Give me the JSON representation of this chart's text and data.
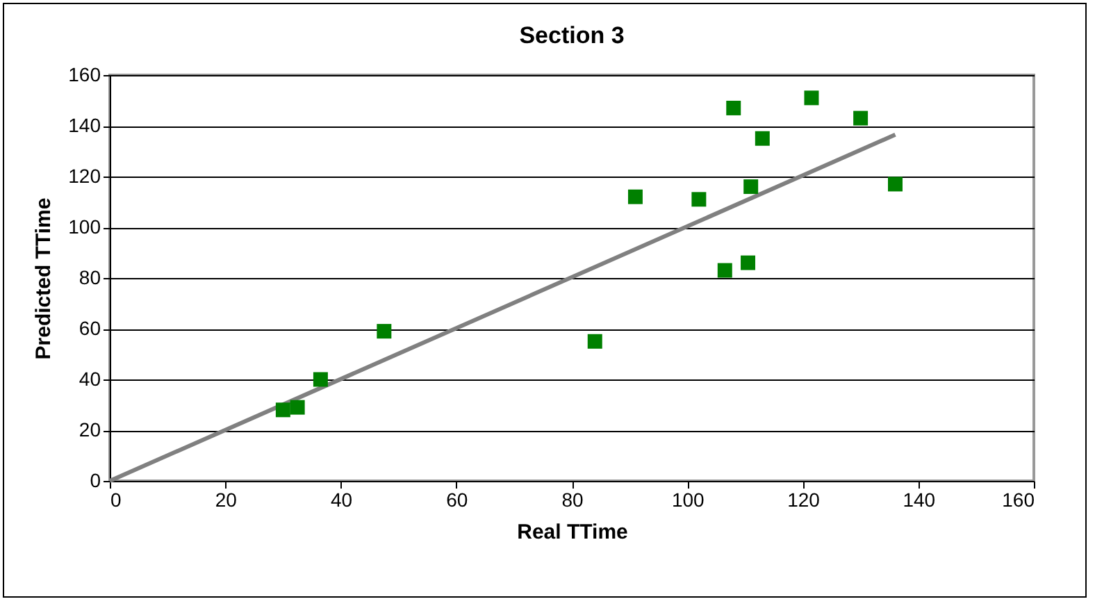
{
  "chart_data": {
    "type": "scatter",
    "title": "Section 3",
    "xlabel": "Real TTime",
    "ylabel": "Predicted TTime",
    "xlim": [
      0,
      160
    ],
    "ylim": [
      0,
      160
    ],
    "xticks": [
      0,
      20,
      40,
      60,
      80,
      100,
      120,
      140,
      160
    ],
    "yticks": [
      0,
      20,
      40,
      60,
      80,
      100,
      120,
      140,
      160
    ],
    "grid": "y",
    "marker": "square",
    "series": [
      {
        "color": "#008000",
        "x": [
          30,
          32.5,
          36.5,
          47.5,
          84,
          91,
          102,
          106.5,
          108,
          110.5,
          111,
          113,
          121.5,
          130,
          136
        ],
        "values": [
          28,
          29,
          40,
          59,
          55,
          112,
          111,
          83,
          147,
          86,
          116,
          135,
          151,
          143,
          117
        ]
      },
      {
        "type": "line",
        "color": "#808080",
        "marker": "none",
        "x": [
          0,
          136
        ],
        "values": [
          0,
          136.5
        ]
      }
    ]
  }
}
